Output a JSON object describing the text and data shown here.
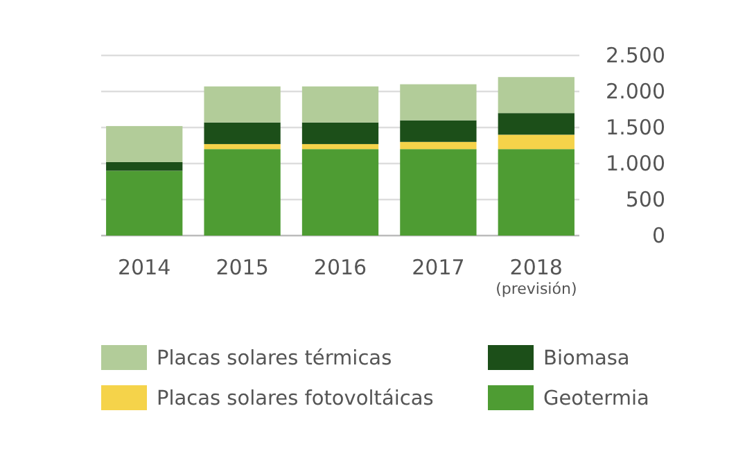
{
  "chart_data": {
    "type": "bar",
    "stacked": true,
    "categories": [
      "2014",
      "2015",
      "2016",
      "2017",
      "2018 (previsión)"
    ],
    "series": [
      {
        "name": "Geotermia",
        "color": "#4e9c33",
        "values": [
          900,
          1200,
          1200,
          1200,
          1200
        ]
      },
      {
        "name": "Placas solares fotovoltáicas",
        "color": "#f5d34a",
        "values": [
          0,
          70,
          70,
          100,
          200
        ]
      },
      {
        "name": "Biomasa",
        "color": "#1c4f19",
        "values": [
          120,
          300,
          300,
          300,
          300
        ]
      },
      {
        "name": "Placas solares térmicas",
        "color": "#b2cc99",
        "values": [
          500,
          500,
          500,
          500,
          500
        ]
      }
    ],
    "ylim": [
      0,
      2500
    ],
    "yticks": [
      0,
      500,
      {
        "value": 1000,
        "label": "1.000"
      },
      {
        "value": 1500,
        "label": "1.500"
      },
      {
        "value": 2000,
        "label": "2.000"
      },
      {
        "value": 2500,
        "label": "2.500"
      }
    ],
    "grid": "y",
    "legend": "bottom"
  }
}
